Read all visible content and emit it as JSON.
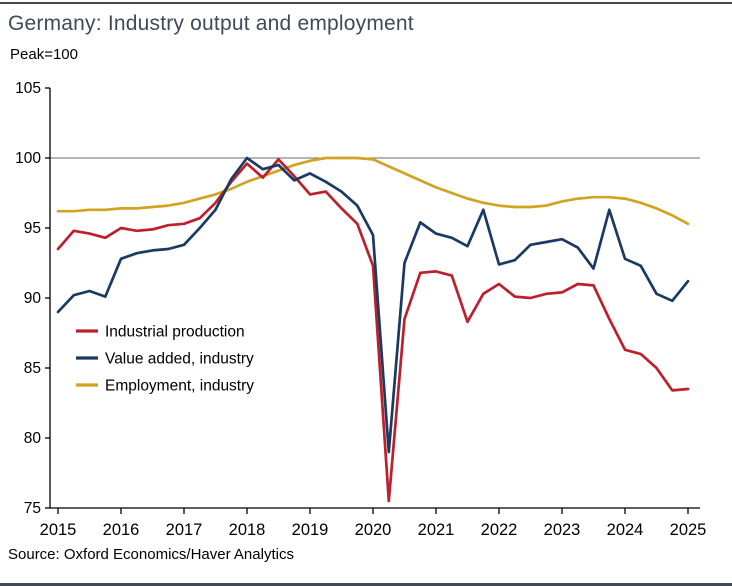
{
  "title": "Germany: Industry output and employment",
  "subtitle": "Peak=100",
  "source": "Source: Oxford Economics/Haver Analytics",
  "colors": {
    "industrial_production": "#bd202c",
    "value_added": "#1a3963",
    "employment": "#d0a321",
    "reference_line": "#6b6b6b",
    "axis": "#000000",
    "title": "#3e4a58",
    "frame_rule": "#3f4a56"
  },
  "chart_data": {
    "type": "line",
    "title": "Germany: Industry output and employment",
    "subtitle": "Peak=100",
    "xlabel": "",
    "ylabel": "Peak=100",
    "x_start": 2015,
    "x_step": 0.25,
    "xlim": [
      2015,
      2025.2
    ],
    "ylim": [
      75,
      105
    ],
    "y_ticks": [
      105,
      100,
      95,
      90,
      85,
      80,
      75
    ],
    "x_ticks": [
      2015,
      2016,
      2017,
      2018,
      2019,
      2020,
      2021,
      2022,
      2023,
      2024,
      2025
    ],
    "reference_line": 100,
    "grid": false,
    "legend_position": "inside-left",
    "series": [
      {
        "name": "Industrial production",
        "color": "#bd202c",
        "values": [
          93.5,
          94.8,
          94.6,
          94.3,
          95.0,
          94.8,
          94.9,
          95.2,
          95.3,
          95.7,
          96.8,
          98.3,
          99.6,
          98.6,
          99.9,
          98.7,
          97.4,
          97.6,
          96.4,
          95.3,
          92.3,
          75.5,
          88.5,
          91.8,
          91.9,
          91.6,
          88.3,
          90.3,
          91.0,
          90.1,
          90.0,
          90.3,
          90.4,
          91.0,
          90.9,
          88.5,
          86.3,
          86.0,
          85.0,
          83.4,
          83.5
        ]
      },
      {
        "name": "Value added, industry",
        "color": "#1a3963",
        "values": [
          89.0,
          90.2,
          90.5,
          90.1,
          92.8,
          93.2,
          93.4,
          93.5,
          93.8,
          95.0,
          96.3,
          98.5,
          100.0,
          99.2,
          99.5,
          98.4,
          98.9,
          98.3,
          97.6,
          96.6,
          94.5,
          79.0,
          92.5,
          95.4,
          94.6,
          94.3,
          93.7,
          96.3,
          92.4,
          92.7,
          93.8,
          94.0,
          94.2,
          93.6,
          92.1,
          96.3,
          92.8,
          92.3,
          90.3,
          89.8,
          91.2
        ]
      },
      {
        "name": "Employment, industry",
        "color": "#d0a321",
        "values": [
          96.2,
          96.2,
          96.3,
          96.3,
          96.4,
          96.4,
          96.5,
          96.6,
          96.8,
          97.1,
          97.4,
          97.8,
          98.3,
          98.7,
          99.1,
          99.5,
          99.8,
          100.0,
          100.0,
          100.0,
          99.9,
          99.4,
          98.9,
          98.4,
          97.9,
          97.5,
          97.1,
          96.8,
          96.6,
          96.5,
          96.5,
          96.6,
          96.9,
          97.1,
          97.2,
          97.2,
          97.1,
          96.8,
          96.4,
          95.9,
          95.3
        ]
      }
    ]
  }
}
